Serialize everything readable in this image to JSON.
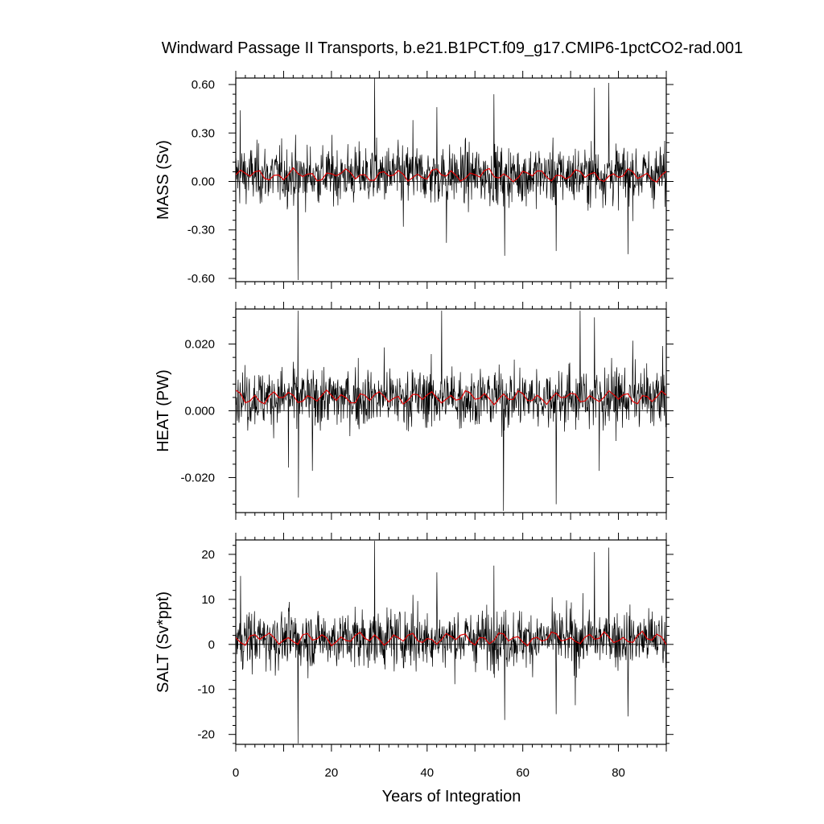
{
  "chart_data": {
    "type": "line",
    "title": "Windward Passage II Transports, b.e21.B1PCT.f09_g17.CMIP6-1pctCO2-rad.001",
    "xlabel": "Years of Integration",
    "xlim": [
      0,
      90
    ],
    "xticks": [
      "0",
      "20",
      "40",
      "60",
      "80"
    ],
    "series_colors": {
      "monthly": "#000000",
      "annual_mean": "#e00000"
    },
    "panels": [
      {
        "ylabel": "MASS (Sv)",
        "ylim": [
          -0.62,
          0.64
        ],
        "yticks": [
          "0.60",
          "0.30",
          "0.00",
          "-0.30",
          "-0.60"
        ],
        "mean": 0.04,
        "noise": 0.09,
        "annual_amp": 0.035,
        "spikes": [
          [
            0.9,
            0.44
          ],
          [
            13.0,
            -0.61
          ],
          [
            29.0,
            0.65
          ],
          [
            54.0,
            0.54
          ],
          [
            56.2,
            -0.46
          ],
          [
            75.0,
            0.58
          ],
          [
            78.0,
            0.61
          ],
          [
            82.0,
            -0.45
          ],
          [
            67.0,
            -0.43
          ],
          [
            42.0,
            0.46
          ],
          [
            37.0,
            0.38
          ],
          [
            44.0,
            -0.38
          ],
          [
            35.0,
            -0.28
          ]
        ]
      },
      {
        "ylabel": "HEAT (PW)",
        "ylim": [
          -0.0305,
          0.0305
        ],
        "yticks": [
          "0.020",
          "0.000",
          "-0.020"
        ],
        "mean": 0.004,
        "noise": 0.0045,
        "annual_amp": 0.0018,
        "spikes": [
          [
            13.0,
            0.03
          ],
          [
            13.1,
            -0.026
          ],
          [
            43.0,
            0.03
          ],
          [
            56.0,
            -0.03
          ],
          [
            67.0,
            -0.028
          ],
          [
            72.0,
            0.03
          ],
          [
            75.0,
            0.028
          ],
          [
            11.0,
            -0.017
          ],
          [
            16.0,
            -0.018
          ],
          [
            76.0,
            -0.018
          ],
          [
            31.0,
            0.019
          ],
          [
            83.0,
            0.021
          ]
        ]
      },
      {
        "ylabel": "SALT (Sv*ppt)",
        "ylim": [
          -22.2,
          23.2
        ],
        "yticks": [
          "20",
          "10",
          "0",
          "-10",
          "-20"
        ],
        "mean": 1.3,
        "noise": 3.2,
        "annual_amp": 1.3,
        "spikes": [
          [
            1.0,
            15.2
          ],
          [
            13.0,
            -22.0
          ],
          [
            29.0,
            23.0
          ],
          [
            54.0,
            17.5
          ],
          [
            56.2,
            -16.8
          ],
          [
            75.0,
            20.5
          ],
          [
            78.0,
            21.5
          ],
          [
            82.0,
            -16.0
          ],
          [
            67.0,
            -15.5
          ],
          [
            42.0,
            16.0
          ],
          [
            37.0,
            11.0
          ],
          [
            71.0,
            -13.5
          ]
        ]
      }
    ]
  }
}
